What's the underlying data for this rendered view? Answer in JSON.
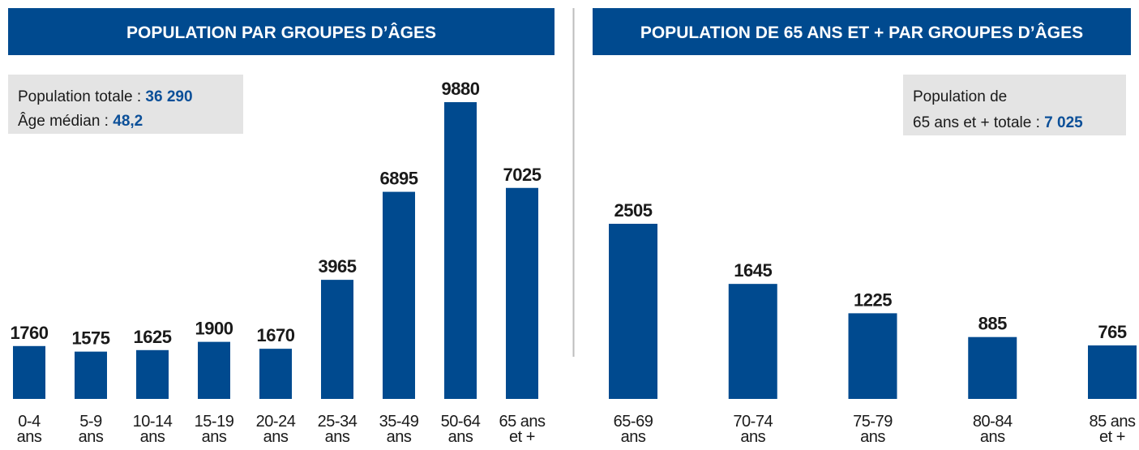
{
  "chart_data": [
    {
      "type": "bar",
      "title": "POPULATION PAR GROUPES D’ÂGES",
      "annotations": [
        {
          "label": "Population totale :",
          "value": "36 290"
        },
        {
          "label": "Âge médian :",
          "value": "48,2"
        }
      ],
      "categories": [
        [
          "0-4",
          "ans"
        ],
        [
          "5-9",
          "ans"
        ],
        [
          "10-14",
          "ans"
        ],
        [
          "15-19",
          "ans"
        ],
        [
          "20-24",
          "ans"
        ],
        [
          "25-34",
          "ans"
        ],
        [
          "35-49",
          "ans"
        ],
        [
          "50-64",
          "ans"
        ],
        [
          "65 ans",
          "et +"
        ]
      ],
      "values": [
        1760,
        1575,
        1625,
        1900,
        1670,
        3965,
        6895,
        9880,
        7025
      ],
      "color": "#004a8f"
    },
    {
      "type": "bar",
      "title": "POPULATION DE 65 ANS ET + PAR GROUPES D’ÂGES",
      "annotations": [
        {
          "label": "Population de"
        },
        {
          "label": "65 ans et + totale :",
          "value": "7 025"
        }
      ],
      "categories": [
        [
          "65-69",
          "ans"
        ],
        [
          "70-74",
          "ans"
        ],
        [
          "75-79",
          "ans"
        ],
        [
          "80-84",
          "ans"
        ],
        [
          "85 ans",
          "et +"
        ]
      ],
      "values": [
        2505,
        1645,
        1225,
        885,
        765
      ],
      "color": "#004a8f"
    }
  ]
}
